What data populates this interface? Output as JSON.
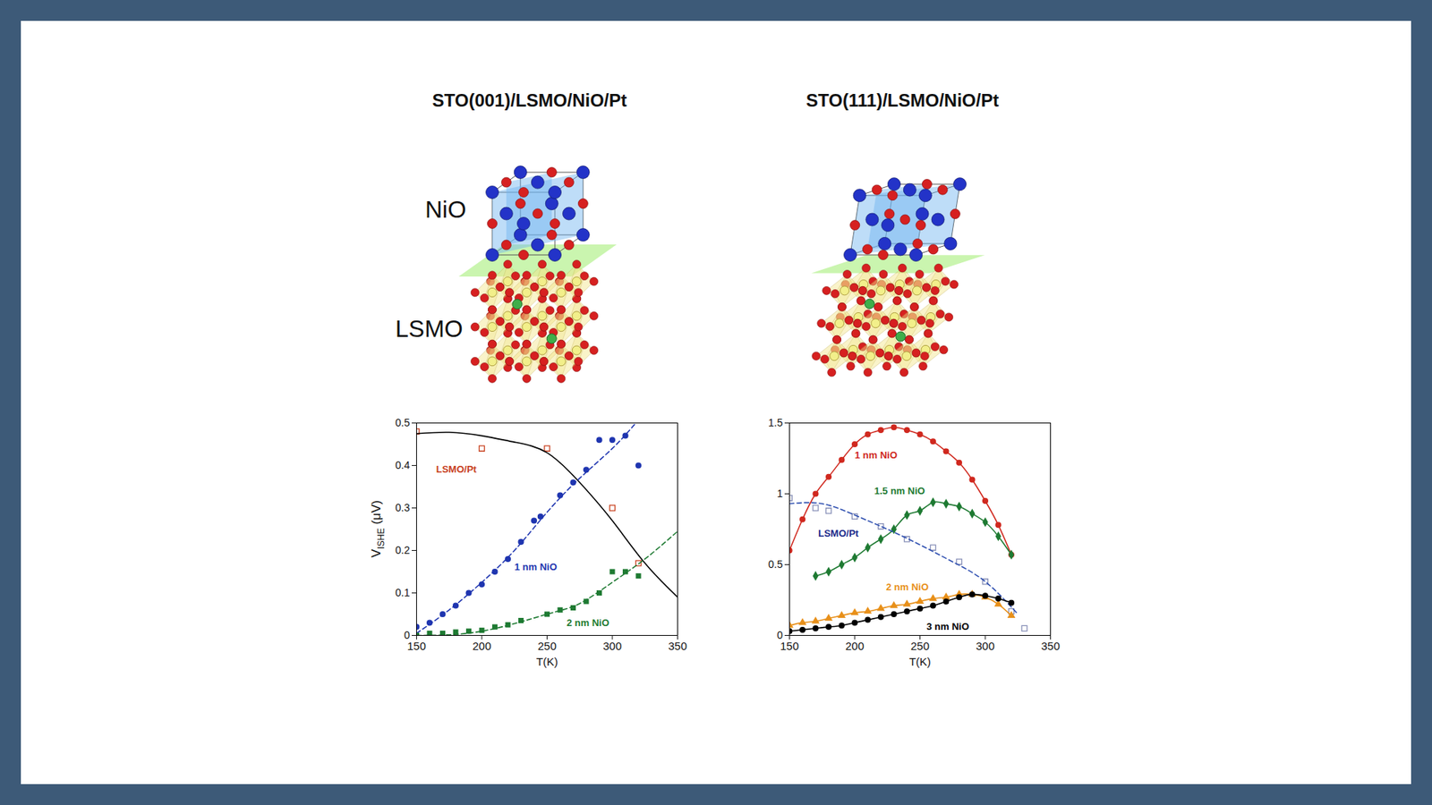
{
  "diagrams": [
    {
      "title": "STO(001)/LSMO/NiO/Pt",
      "labels": [
        "NiO",
        "LSMO"
      ]
    },
    {
      "title": "STO(111)/LSMO/NiO/Pt"
    }
  ],
  "chart_data": [
    {
      "type": "scatter",
      "xlabel": "T(K)",
      "ylabel": {
        "main": "V",
        "sub": "ISHE",
        "tail": "(μV)"
      },
      "xlim": [
        150,
        350
      ],
      "xticks": [
        150,
        200,
        250,
        300,
        350
      ],
      "ylim": [
        0,
        0.5
      ],
      "yticks": [
        0,
        0.1,
        0.2,
        0.3,
        0.4,
        0.5
      ],
      "series": [
        {
          "type": "scatter",
          "color": "#c8401e",
          "marker": "open_square",
          "x": [
            150,
            200,
            250,
            300,
            320
          ],
          "values": [
            0.48,
            0.44,
            0.44,
            0.3,
            0.17
          ]
        },
        {
          "type": "line",
          "color": "#000000",
          "marker": "none",
          "line_style": "solid",
          "x": [
            150,
            175,
            200,
            225,
            250,
            275,
            300,
            325,
            350
          ],
          "values": [
            0.475,
            0.478,
            0.47,
            0.455,
            0.43,
            0.36,
            0.27,
            0.17,
            0.09
          ]
        },
        {
          "type": "scatter",
          "color": "#1f35b0",
          "marker": "circle",
          "x": [
            150,
            160,
            170,
            180,
            190,
            200,
            210,
            220,
            230,
            240,
            245,
            260,
            270,
            280,
            290,
            300,
            310,
            320
          ],
          "values": [
            0.02,
            0.03,
            0.05,
            0.07,
            0.1,
            0.12,
            0.15,
            0.18,
            0.22,
            0.27,
            0.28,
            0.33,
            0.36,
            0.39,
            0.46,
            0.46,
            0.47,
            0.4
          ]
        },
        {
          "type": "line",
          "color": "#1f35b0",
          "marker": "none",
          "line_style": "dashed",
          "x": [
            150,
            175,
            200,
            225,
            250,
            275,
            300,
            318
          ],
          "values": [
            0.005,
            0.06,
            0.125,
            0.2,
            0.29,
            0.37,
            0.44,
            0.5
          ]
        },
        {
          "type": "scatter",
          "color": "#1e7a32",
          "marker": "square",
          "x": [
            150,
            160,
            170,
            180,
            190,
            200,
            210,
            220,
            230,
            250,
            260,
            270,
            280,
            290,
            300,
            310,
            320
          ],
          "values": [
            0,
            0.005,
            0.005,
            0.008,
            0.01,
            0.012,
            0.02,
            0.025,
            0.035,
            0.05,
            0.06,
            0.065,
            0.08,
            0.1,
            0.15,
            0.15,
            0.14
          ]
        },
        {
          "type": "line",
          "color": "#1e7a32",
          "marker": "none",
          "line_style": "dashed",
          "x": [
            150,
            200,
            250,
            275,
            300,
            325,
            350
          ],
          "values": [
            0,
            0.01,
            0.05,
            0.075,
            0.125,
            0.18,
            0.245
          ]
        }
      ],
      "annotations": [
        {
          "text": "LSMO/Pt",
          "x": 165,
          "y": 0.39,
          "color": "#c8401e"
        },
        {
          "text": "1 nm NiO",
          "x": 225,
          "y": 0.16,
          "color": "#1f35b0"
        },
        {
          "text": "2 nm NiO",
          "x": 265,
          "y": 0.03,
          "color": "#1e7a32"
        }
      ]
    },
    {
      "type": "scatter",
      "xlabel": "T(K)",
      "xlim": [
        150,
        350
      ],
      "xticks": [
        150,
        200,
        250,
        300,
        350
      ],
      "ylim": [
        0,
        1.5
      ],
      "yticks": [
        0,
        0.5,
        1,
        1.5
      ],
      "series": [
        {
          "type": "line",
          "color": "#d0281e",
          "marker": "circle",
          "line_style": "solid",
          "x": [
            150,
            160,
            170,
            180,
            190,
            200,
            210,
            220,
            230,
            240,
            250,
            260,
            270,
            280,
            290,
            300,
            310,
            320
          ],
          "values": [
            0.6,
            0.82,
            1.0,
            1.12,
            1.24,
            1.35,
            1.42,
            1.45,
            1.47,
            1.45,
            1.42,
            1.37,
            1.3,
            1.22,
            1.1,
            0.95,
            0.78,
            0.57
          ]
        },
        {
          "type": "line",
          "color": "#1e7a32",
          "marker": "diamond",
          "line_style": "solid",
          "x": [
            170,
            180,
            190,
            200,
            210,
            220,
            230,
            240,
            250,
            260,
            270,
            280,
            290,
            300,
            310,
            320
          ],
          "values": [
            0.42,
            0.45,
            0.5,
            0.55,
            0.62,
            0.68,
            0.75,
            0.85,
            0.88,
            0.94,
            0.93,
            0.91,
            0.86,
            0.8,
            0.7,
            0.57
          ]
        },
        {
          "type": "scatter",
          "color": "#8890b8",
          "marker": "open_square",
          "x": [
            150,
            170,
            180,
            200,
            220,
            240,
            260,
            280,
            300,
            320,
            330
          ],
          "values": [
            0.97,
            0.9,
            0.88,
            0.84,
            0.77,
            0.68,
            0.62,
            0.52,
            0.38,
            0.17,
            0.05
          ]
        },
        {
          "type": "line",
          "color": "#2e4fb0",
          "marker": "none",
          "line_style": "dashed",
          "x": [
            150,
            175,
            200,
            225,
            250,
            275,
            300,
            325
          ],
          "values": [
            0.93,
            0.93,
            0.85,
            0.75,
            0.64,
            0.52,
            0.38,
            0.15
          ]
        },
        {
          "type": "line",
          "color": "#e8901a",
          "marker": "triangle",
          "line_style": "solid",
          "x": [
            150,
            160,
            170,
            180,
            190,
            200,
            210,
            220,
            230,
            240,
            250,
            260,
            270,
            280,
            290,
            300,
            310,
            320
          ],
          "values": [
            0.07,
            0.09,
            0.1,
            0.12,
            0.14,
            0.16,
            0.17,
            0.19,
            0.21,
            0.22,
            0.24,
            0.26,
            0.27,
            0.29,
            0.29,
            0.27,
            0.22,
            0.14
          ]
        },
        {
          "type": "line",
          "color": "#000000",
          "marker": "circle",
          "line_style": "solid",
          "x": [
            150,
            160,
            170,
            180,
            190,
            200,
            210,
            220,
            230,
            240,
            250,
            260,
            270,
            280,
            290,
            300,
            310,
            320
          ],
          "values": [
            0.03,
            0.04,
            0.05,
            0.06,
            0.07,
            0.09,
            0.11,
            0.13,
            0.15,
            0.17,
            0.19,
            0.21,
            0.24,
            0.27,
            0.29,
            0.28,
            0.26,
            0.23
          ]
        }
      ],
      "annotations": [
        {
          "text": "1 nm NiO",
          "x": 200,
          "y": 1.27,
          "color": "#d0281e"
        },
        {
          "text": "1.5 nm NiO",
          "x": 215,
          "y": 1.02,
          "color": "#1e7a32"
        },
        {
          "text": "LSMO/Pt",
          "x": 172,
          "y": 0.72,
          "color": "#1b2a8a"
        },
        {
          "text": "2 nm NiO",
          "x": 224,
          "y": 0.34,
          "color": "#e8901a"
        },
        {
          "text": "3 nm NiO",
          "x": 255,
          "y": 0.06,
          "color": "#000000"
        }
      ]
    }
  ]
}
